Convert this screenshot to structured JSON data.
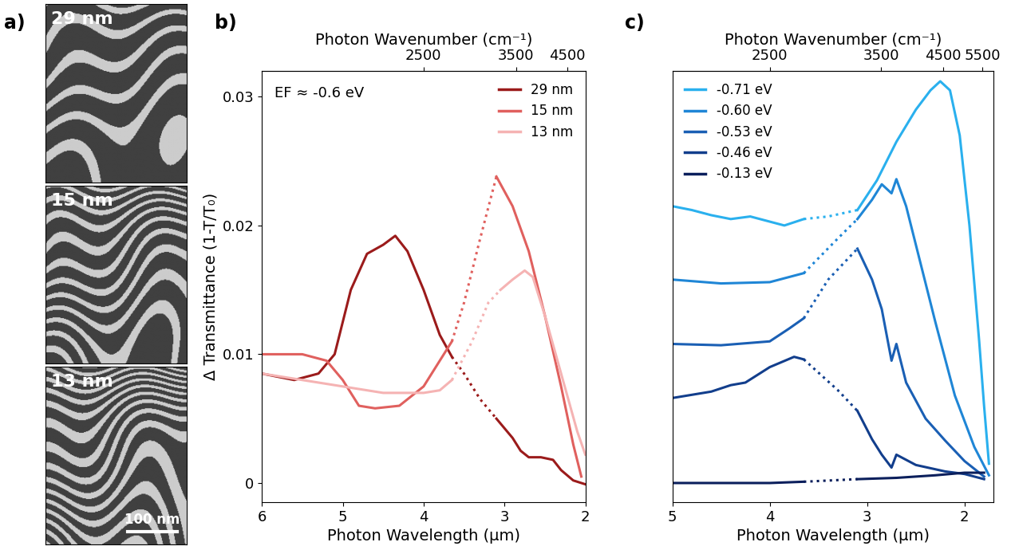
{
  "panel_a": {
    "label": "a)",
    "images": [
      {
        "label": "29 nm"
      },
      {
        "label": "15 nm"
      },
      {
        "label": "13 nm"
      }
    ],
    "scale_bar": "100 nm"
  },
  "chart_data": [
    {
      "type": "line",
      "label": "b)",
      "x_label": "Photon Wavelength (μm)",
      "x2_label": "Photon Wavenumber (cm⁻¹)",
      "y_label": "Δ Transmittance (1-T/T₀)",
      "annotation": "EF ≈ -0.6 eV",
      "xlim": [
        6,
        2
      ],
      "xticks": [
        6,
        5,
        4,
        3,
        2
      ],
      "x2ticks": [
        2500,
        3500,
        4500
      ],
      "ylim": [
        -0.0015,
        0.032
      ],
      "yticks": [
        0,
        0.01,
        0.02,
        0.03
      ],
      "legend": "upper right",
      "series": [
        {
          "name": "29 nm",
          "color": "#9b1b1b",
          "line_style": "solid",
          "x": [
            6.0,
            5.6,
            5.3,
            5.1,
            4.9,
            4.7,
            4.5,
            4.35,
            4.2,
            4.0,
            3.8,
            3.65,
            null,
            3.1,
            2.9,
            2.8,
            2.7,
            2.55,
            2.4,
            2.3,
            2.15,
            2.0
          ],
          "values": [
            0.0085,
            0.008,
            0.0085,
            0.01,
            0.015,
            0.0178,
            0.0185,
            0.0192,
            0.018,
            0.015,
            0.0115,
            0.0098,
            null,
            0.005,
            0.0035,
            0.0025,
            0.002,
            0.002,
            0.0018,
            0.001,
            0.0002,
            -0.0001
          ],
          "interpolated": {
            "line_style": "dotted",
            "x": [
              3.65,
              3.5,
              3.3,
              3.1
            ],
            "values": [
              0.0098,
              0.0085,
              0.0065,
              0.005
            ]
          }
        },
        {
          "name": "15 nm",
          "color": "#e0605e",
          "line_style": "solid",
          "x": [
            6.0,
            5.5,
            5.2,
            5.0,
            4.8,
            4.6,
            4.3,
            4.0,
            3.8,
            3.65,
            null,
            3.1,
            2.9,
            2.7,
            2.5,
            2.3,
            2.15,
            2.05
          ],
          "values": [
            0.01,
            0.01,
            0.0095,
            0.008,
            0.006,
            0.0058,
            0.006,
            0.0075,
            0.0095,
            0.011,
            null,
            0.0238,
            0.0215,
            0.018,
            0.013,
            0.0075,
            0.003,
            0.0005
          ],
          "interpolated": {
            "line_style": "dotted",
            "x": [
              3.65,
              3.5,
              3.3,
              3.1
            ],
            "values": [
              0.011,
              0.014,
              0.019,
              0.0238
            ]
          }
        },
        {
          "name": "13 nm",
          "color": "#f5b3b3",
          "line_style": "solid",
          "x": [
            6.0,
            5.5,
            5.0,
            4.5,
            4.0,
            3.8,
            3.65,
            null,
            3.05,
            2.9,
            2.75,
            2.65,
            2.5,
            2.3,
            2.1,
            2.0
          ],
          "values": [
            0.0085,
            0.008,
            0.0075,
            0.007,
            0.007,
            0.0072,
            0.008,
            null,
            0.015,
            0.0158,
            0.0165,
            0.016,
            0.013,
            0.0085,
            0.004,
            0.0022
          ],
          "interpolated": {
            "line_style": "dotted",
            "x": [
              3.65,
              3.4,
              3.2,
              3.05
            ],
            "values": [
              0.008,
              0.011,
              0.014,
              0.015
            ]
          }
        }
      ]
    },
    {
      "type": "line",
      "label": "c)",
      "x_label": "Photon Wavelength (μm)",
      "x2_label": "Photon Wavenumber (cm⁻¹)",
      "xlim": [
        5,
        1.7
      ],
      "xticks": [
        5,
        4,
        3,
        2
      ],
      "x2ticks": [
        2500,
        3500,
        4500,
        5500
      ],
      "ylim": [
        -0.0015,
        0.032
      ],
      "tick_labels": "x",
      "legend": "upper left",
      "series": [
        {
          "name": "-0.71 eV",
          "color": "#2ab0ee",
          "line_style": "solid",
          "x": [
            5.0,
            4.8,
            4.6,
            4.4,
            4.2,
            4.0,
            3.85,
            3.65,
            null,
            3.1,
            2.9,
            2.7,
            2.5,
            2.35,
            2.25,
            2.15,
            2.05,
            1.95,
            1.85,
            1.8,
            1.75
          ],
          "values": [
            0.0215,
            0.0212,
            0.0208,
            0.0205,
            0.0207,
            0.0203,
            0.02,
            0.0205,
            null,
            0.0212,
            0.0235,
            0.0265,
            0.029,
            0.0305,
            0.0312,
            0.0305,
            0.027,
            0.02,
            0.011,
            0.006,
            0.0015
          ],
          "interpolated": {
            "line_style": "dotted",
            "x": [
              3.65,
              3.4,
              3.1
            ],
            "values": [
              0.0205,
              0.0207,
              0.0212
            ]
          }
        },
        {
          "name": "-0.60 eV",
          "color": "#1f86d6",
          "line_style": "solid",
          "x": [
            5.0,
            4.5,
            4.0,
            3.65,
            null,
            3.1,
            2.95,
            2.85,
            2.75,
            2.7,
            2.6,
            2.45,
            2.3,
            2.1,
            1.9,
            1.75
          ],
          "values": [
            0.0158,
            0.0155,
            0.0156,
            0.0163,
            null,
            0.0205,
            0.022,
            0.0232,
            0.0225,
            0.0236,
            0.0215,
            0.017,
            0.0125,
            0.0068,
            0.0028,
            0.0006
          ],
          "interpolated": {
            "line_style": "dotted",
            "x": [
              3.65,
              3.3,
              3.1
            ],
            "values": [
              0.0163,
              0.019,
              0.0205
            ]
          }
        },
        {
          "name": "-0.53 eV",
          "color": "#1a5fb4",
          "line_style": "solid",
          "x": [
            5.0,
            4.5,
            4.0,
            3.8,
            3.65,
            null,
            3.1,
            2.95,
            2.85,
            2.75,
            2.7,
            2.6,
            2.4,
            2.2,
            2.0,
            1.8
          ],
          "values": [
            0.0108,
            0.0107,
            0.011,
            0.012,
            0.0128,
            null,
            0.0182,
            0.0158,
            0.0135,
            0.0095,
            0.0108,
            0.0078,
            0.005,
            0.0033,
            0.0017,
            0.0005
          ],
          "interpolated": {
            "line_style": "dotted",
            "x": [
              3.65,
              3.4,
              3.1
            ],
            "values": [
              0.0128,
              0.0158,
              0.0182
            ]
          }
        },
        {
          "name": "-0.46 eV",
          "color": "#123e8c",
          "line_style": "solid",
          "x": [
            5.0,
            4.6,
            4.4,
            4.25,
            4.0,
            3.75,
            3.65,
            null,
            3.1,
            2.95,
            2.85,
            2.75,
            2.7,
            2.5,
            2.2,
            2.0,
            1.8
          ],
          "values": [
            0.0066,
            0.0071,
            0.0076,
            0.0078,
            0.009,
            0.0098,
            0.0096,
            null,
            0.0056,
            0.0034,
            0.0022,
            0.0012,
            0.0022,
            0.0014,
            0.0009,
            0.0007,
            0.0003
          ],
          "interpolated": {
            "line_style": "dotted",
            "x": [
              3.65,
              3.3,
              3.1
            ],
            "values": [
              0.0096,
              0.0072,
              0.0056
            ]
          }
        },
        {
          "name": "-0.13 eV",
          "color": "#0b1f5c",
          "line_style": "solid",
          "x": [
            5.0,
            4.5,
            4.0,
            3.65,
            null,
            3.1,
            2.7,
            2.3,
            2.0,
            1.8
          ],
          "values": [
            0.0,
            0.0,
            0.0,
            0.0001,
            null,
            0.0003,
            0.0004,
            0.0006,
            0.0008,
            0.0008
          ],
          "interpolated": {
            "line_style": "dotted",
            "x": [
              3.65,
              3.1
            ],
            "values": [
              0.0001,
              0.0003
            ]
          }
        }
      ]
    }
  ]
}
